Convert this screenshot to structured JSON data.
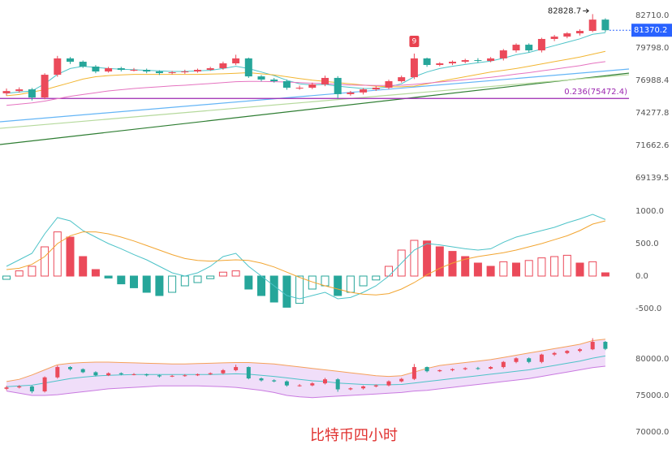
{
  "caption": "比特币四小时",
  "chart_data": [
    {
      "type": "candlestick",
      "log_scale": true,
      "grid": false,
      "up_color": "#eb4a5a",
      "down_color": "#26a69a",
      "ylim": [
        68158,
        84130
      ],
      "yticks": [
        {
          "value": 82710,
          "label": "82710.0"
        },
        {
          "value": 79798,
          "label": "79798.0"
        },
        {
          "value": 76988.4,
          "label": "76988.4"
        },
        {
          "value": 74277.8,
          "label": "74277.8"
        },
        {
          "value": 71662.6,
          "label": "71662.6"
        },
        {
          "value": 69139.5,
          "label": "69139.5"
        }
      ],
      "open": [
        75900,
        76090,
        76230,
        75550,
        77470,
        78880,
        78590,
        78170,
        77750,
        78030,
        77890,
        77890,
        77750,
        77610,
        77680,
        77750,
        77890,
        78030,
        78450,
        78880,
        77330,
        77060,
        76920,
        76370,
        76370,
        76650,
        77200,
        75830,
        75970,
        76230,
        76370,
        76920,
        77260,
        78880,
        78310,
        78450,
        78590,
        78730,
        78660,
        78880,
        79580,
        80080,
        79580,
        80590,
        80800,
        81090,
        81310,
        82330
      ],
      "high": [
        76300,
        76400,
        76350,
        77600,
        79100,
        79000,
        78700,
        78300,
        78150,
        78150,
        78050,
        78000,
        77850,
        77800,
        77900,
        78000,
        78150,
        78600,
        79200,
        78950,
        77450,
        77200,
        77050,
        76550,
        76800,
        77400,
        77350,
        76100,
        76350,
        76500,
        77050,
        77400,
        79300,
        78950,
        78550,
        78700,
        78850,
        78900,
        79000,
        79700,
        80200,
        80200,
        80700,
        80950,
        81200,
        81450,
        82828.7,
        82450
      ],
      "low": [
        75700,
        75950,
        75300,
        75400,
        77300,
        78400,
        78050,
        77600,
        77650,
        77750,
        77750,
        77600,
        77450,
        77500,
        77550,
        77650,
        77800,
        77900,
        78300,
        77200,
        76900,
        76800,
        76200,
        76200,
        76250,
        76500,
        75500,
        75700,
        75800,
        76100,
        76250,
        76800,
        77100,
        78150,
        78200,
        78300,
        78450,
        78500,
        78550,
        78700,
        79400,
        79400,
        79400,
        80400,
        80650,
        80900,
        81200,
        81200
      ],
      "close": [
        76090,
        76230,
        75550,
        77470,
        78880,
        78590,
        78170,
        77750,
        78030,
        77890,
        77890,
        77750,
        77610,
        77680,
        77750,
        77890,
        78030,
        78450,
        78880,
        77330,
        77060,
        76920,
        76370,
        76370,
        76650,
        77200,
        75830,
        75970,
        76230,
        76370,
        76920,
        77260,
        78880,
        78310,
        78450,
        78590,
        78730,
        78660,
        78880,
        79580,
        80080,
        79580,
        80590,
        80800,
        81090,
        81310,
        82330,
        81370.2
      ],
      "series": [
        {
          "color": "#4dc3c8",
          "values": [
            75900,
            76000,
            76100,
            76700,
            77500,
            78000,
            78200,
            78100,
            78000,
            77950,
            77900,
            77850,
            77800,
            77750,
            77750,
            77800,
            77850,
            78000,
            78200,
            78000,
            77700,
            77400,
            77000,
            76700,
            76600,
            76650,
            76500,
            76400,
            76300,
            76300,
            76450,
            76700,
            77300,
            77700,
            78000,
            78200,
            78350,
            78500,
            78650,
            78900,
            79200,
            79400,
            79700,
            80000,
            80300,
            80600,
            81000,
            81150
          ]
        },
        {
          "color": "#f2b632",
          "values": [
            75700,
            75800,
            76000,
            76200,
            76500,
            76800,
            77100,
            77300,
            77400,
            77450,
            77500,
            77500,
            77500,
            77500,
            77500,
            77500,
            77520,
            77550,
            77600,
            77650,
            77550,
            77450,
            77300,
            77150,
            77000,
            76900,
            76800,
            76700,
            76600,
            76500,
            76450,
            76450,
            76500,
            76700,
            76900,
            77100,
            77300,
            77500,
            77700,
            77850,
            78000,
            78200,
            78400,
            78600,
            78800,
            79000,
            79250,
            79500
          ]
        },
        {
          "color": "#e573c0",
          "values": [
            74900,
            75000,
            75100,
            75250,
            75450,
            75650,
            75800,
            75950,
            76100,
            76200,
            76300,
            76380,
            76450,
            76520,
            76580,
            76650,
            76720,
            76800,
            76880,
            76900,
            76900,
            76880,
            76850,
            76800,
            76750,
            76720,
            76650,
            76600,
            76580,
            76560,
            76560,
            76580,
            76650,
            76750,
            76850,
            76950,
            77050,
            77150,
            77250,
            77380,
            77520,
            77650,
            77800,
            77950,
            78100,
            78250,
            78450,
            78600
          ]
        }
      ],
      "trend_lines": [
        {
          "color": "#2e7d32",
          "values": [
            71730,
            77610
          ]
        },
        {
          "color": "#64b5f6",
          "values": [
            73550,
            77960
          ]
        },
        {
          "color": "#b5d99c",
          "values": [
            73020,
            77470
          ]
        }
      ],
      "fib": {
        "value": 75472.4,
        "label": "0.236(75472.4)",
        "color": "#9c27b0"
      },
      "td_label": "9",
      "last_price_color": "#2962ff"
    },
    {
      "type": "macd",
      "grid": false,
      "up_color": "#eb4a5a",
      "down_color": "#26a69a",
      "ylim": [
        -750,
        1250
      ],
      "yticks": [
        {
          "value": 1000,
          "label": "1000.0"
        },
        {
          "value": 500,
          "label": "500.0"
        },
        {
          "value": 0,
          "label": "0.0"
        },
        {
          "value": -500,
          "label": "-500.0"
        }
      ],
      "histogram": [
        -50,
        80,
        150,
        450,
        680,
        600,
        300,
        100,
        -30,
        -120,
        -180,
        -250,
        -300,
        -250,
        -150,
        -100,
        -40,
        60,
        80,
        -200,
        -300,
        -400,
        -480,
        -420,
        -200,
        -150,
        -300,
        -250,
        -150,
        -60,
        150,
        400,
        550,
        540,
        450,
        380,
        300,
        200,
        150,
        220,
        200,
        240,
        280,
        300,
        320,
        200,
        220,
        50
      ],
      "series": [
        {
          "color": "#4dc3c8",
          "values": [
            150,
            250,
            350,
            650,
            900,
            850,
            700,
            600,
            500,
            420,
            330,
            250,
            150,
            50,
            0,
            50,
            150,
            300,
            350,
            150,
            0,
            -150,
            -300,
            -350,
            -300,
            -250,
            -350,
            -330,
            -250,
            -150,
            0,
            200,
            400,
            500,
            480,
            450,
            420,
            400,
            420,
            520,
            600,
            650,
            700,
            750,
            820,
            880,
            950,
            870
          ]
        },
        {
          "color": "#f2a531",
          "values": [
            100,
            120,
            180,
            300,
            500,
            620,
            680,
            680,
            650,
            600,
            540,
            470,
            400,
            330,
            270,
            240,
            230,
            240,
            250,
            240,
            200,
            140,
            60,
            -20,
            -90,
            -150,
            -200,
            -250,
            -280,
            -290,
            -270,
            -200,
            -100,
            20,
            120,
            200,
            260,
            300,
            330,
            360,
            400,
            450,
            500,
            560,
            620,
            700,
            800,
            850
          ]
        }
      ]
    },
    {
      "type": "bollinger",
      "grid": false,
      "band_fill": "#ecd6f7",
      "ylim": [
        67440,
        84110
      ],
      "yticks": [
        {
          "value": 80000,
          "label": "80000.0"
        },
        {
          "value": 75000,
          "label": "75000.0"
        },
        {
          "value": 70000,
          "label": "70000.0"
        }
      ],
      "series": [
        {
          "color": "#f5a05a",
          "values": [
            76900,
            77200,
            77800,
            78500,
            79200,
            79400,
            79500,
            79550,
            79550,
            79500,
            79450,
            79400,
            79350,
            79300,
            79300,
            79350,
            79400,
            79450,
            79500,
            79500,
            79400,
            79300,
            79100,
            78900,
            78700,
            78500,
            78300,
            78100,
            77900,
            77700,
            77600,
            77700,
            78200,
            78700,
            79100,
            79300,
            79500,
            79700,
            79900,
            80200,
            80500,
            80800,
            81100,
            81400,
            81700,
            82000,
            82500,
            82700
          ]
        },
        {
          "color": "#4dc3c8",
          "values": [
            76200,
            76300,
            76400,
            76700,
            77000,
            77300,
            77500,
            77650,
            77750,
            77800,
            77850,
            77850,
            77850,
            77850,
            77850,
            77850,
            77850,
            77900,
            77950,
            77900,
            77750,
            77600,
            77400,
            77200,
            77000,
            76900,
            76700,
            76600,
            76500,
            76450,
            76450,
            76500,
            76700,
            76900,
            77100,
            77300,
            77500,
            77700,
            77900,
            78100,
            78300,
            78500,
            78800,
            79100,
            79400,
            79700,
            80100,
            80400
          ]
        },
        {
          "color": "#c97ae0",
          "values": [
            75600,
            75300,
            75000,
            75000,
            75100,
            75300,
            75500,
            75700,
            75900,
            76000,
            76100,
            76200,
            76300,
            76300,
            76300,
            76300,
            76250,
            76200,
            76100,
            75900,
            75700,
            75400,
            75000,
            74800,
            74700,
            74800,
            74900,
            75000,
            75100,
            75200,
            75300,
            75400,
            75600,
            75700,
            75900,
            76100,
            76300,
            76500,
            76700,
            76900,
            77100,
            77300,
            77600,
            77900,
            78200,
            78500,
            78800,
            79000
          ]
        }
      ]
    }
  ]
}
